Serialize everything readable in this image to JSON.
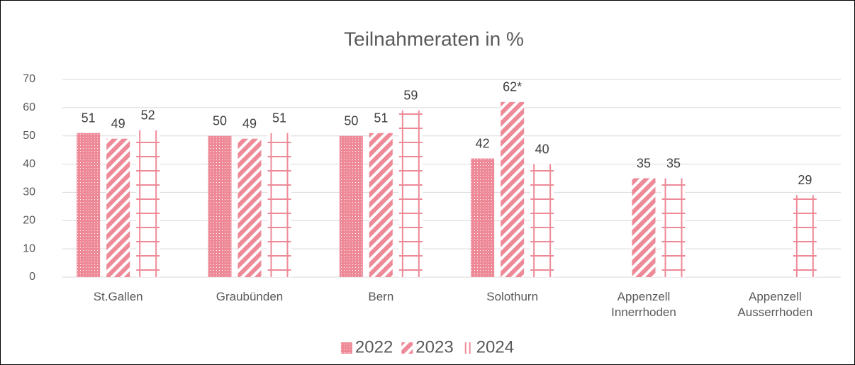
{
  "chart_data": {
    "type": "bar",
    "title": "Teilnahmeraten in %",
    "categories": [
      "St.Gallen",
      "Graubünden",
      "Bern",
      "Solothurn",
      "Appenzell Innerrhoden",
      "Appenzell Ausserrhoden"
    ],
    "series": [
      {
        "name": "2022",
        "color": "#ee8a98",
        "pattern": "dots",
        "values": [
          51,
          50,
          50,
          42,
          null,
          null
        ]
      },
      {
        "name": "2023",
        "color": "#ee8a98",
        "pattern": "diagonal",
        "values": [
          49,
          49,
          51,
          62,
          35,
          null
        ],
        "value_labels": [
          "49",
          "49",
          "51",
          "62*",
          "35",
          null
        ]
      },
      {
        "name": "2024",
        "color": "#ee8a98",
        "pattern": "grid",
        "values": [
          52,
          51,
          59,
          40,
          35,
          29
        ]
      }
    ],
    "ylim": [
      0,
      70
    ],
    "yticks": [
      0,
      10,
      20,
      30,
      40,
      50,
      60,
      70
    ],
    "grid": true,
    "legend": "bottom"
  }
}
